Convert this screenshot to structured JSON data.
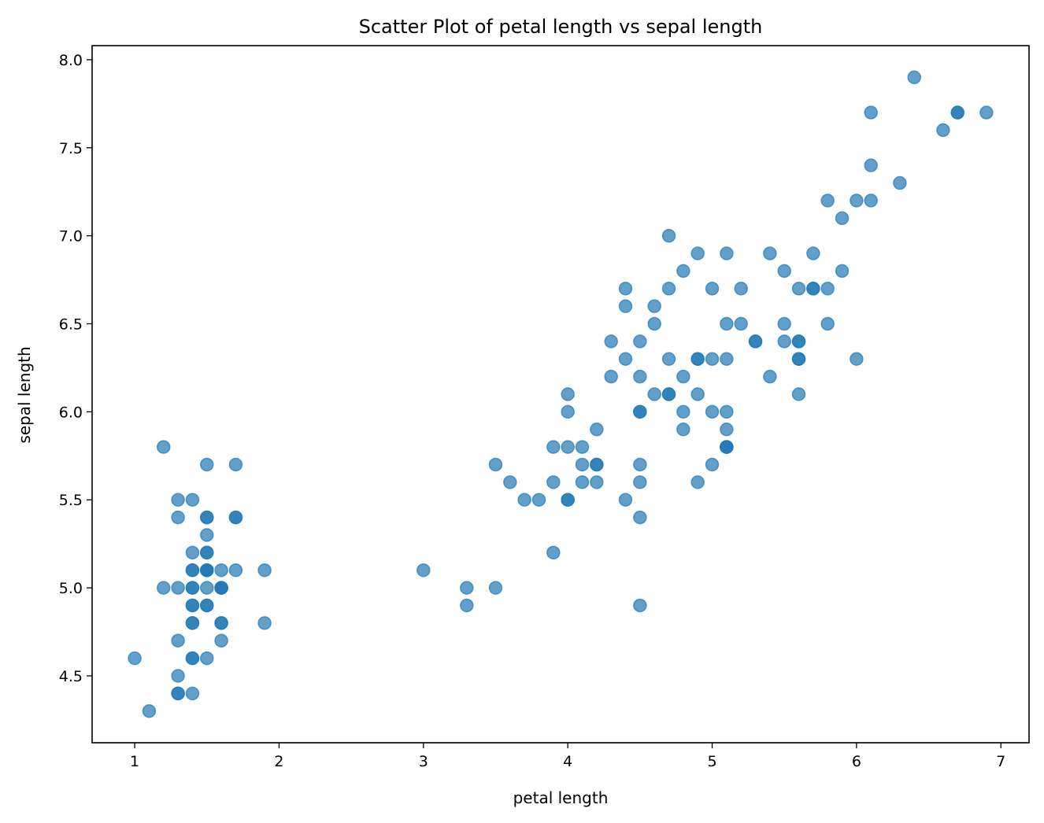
{
  "chart_data": {
    "type": "scatter",
    "title": "Scatter Plot of petal length vs sepal length",
    "xlabel": "petal length",
    "ylabel": "sepal length",
    "xlim": [
      0.705,
      7.195
    ],
    "ylim": [
      4.12,
      8.08
    ],
    "xticks": [
      1,
      2,
      3,
      4,
      5,
      6,
      7
    ],
    "xtick_labels": [
      "1",
      "2",
      "3",
      "4",
      "5",
      "6",
      "7"
    ],
    "yticks": [
      4.5,
      5.0,
      5.5,
      6.0,
      6.5,
      7.0,
      7.5,
      8.0
    ],
    "ytick_labels": [
      "4.5",
      "5.0",
      "5.5",
      "6.0",
      "6.5",
      "7.0",
      "7.5",
      "8.0"
    ],
    "grid": false,
    "marker_color": "#1f77b4",
    "marker_alpha": 0.7,
    "points": [
      [
        1.4,
        5.1
      ],
      [
        1.4,
        4.9
      ],
      [
        1.3,
        4.7
      ],
      [
        1.5,
        4.6
      ],
      [
        1.4,
        5.0
      ],
      [
        1.7,
        5.4
      ],
      [
        1.4,
        4.6
      ],
      [
        1.5,
        5.0
      ],
      [
        1.4,
        4.4
      ],
      [
        1.5,
        4.9
      ],
      [
        1.5,
        5.4
      ],
      [
        1.6,
        4.8
      ],
      [
        1.4,
        4.8
      ],
      [
        1.1,
        4.3
      ],
      [
        1.2,
        5.8
      ],
      [
        1.5,
        5.7
      ],
      [
        1.3,
        5.4
      ],
      [
        1.4,
        5.1
      ],
      [
        1.7,
        5.7
      ],
      [
        1.5,
        5.1
      ],
      [
        1.7,
        5.4
      ],
      [
        1.5,
        5.1
      ],
      [
        1.0,
        4.6
      ],
      [
        1.7,
        5.1
      ],
      [
        1.9,
        4.8
      ],
      [
        1.6,
        5.0
      ],
      [
        1.6,
        5.0
      ],
      [
        1.5,
        5.2
      ],
      [
        1.4,
        5.2
      ],
      [
        1.6,
        4.7
      ],
      [
        1.6,
        4.8
      ],
      [
        1.5,
        5.4
      ],
      [
        1.5,
        5.2
      ],
      [
        1.4,
        5.5
      ],
      [
        1.5,
        4.9
      ],
      [
        1.2,
        5.0
      ],
      [
        1.3,
        5.5
      ],
      [
        1.4,
        4.9
      ],
      [
        1.3,
        4.4
      ],
      [
        1.5,
        5.1
      ],
      [
        1.3,
        5.0
      ],
      [
        1.3,
        4.5
      ],
      [
        1.3,
        4.4
      ],
      [
        1.6,
        5.0
      ],
      [
        1.9,
        5.1
      ],
      [
        1.4,
        4.8
      ],
      [
        1.6,
        5.1
      ],
      [
        1.4,
        4.6
      ],
      [
        1.5,
        5.3
      ],
      [
        1.4,
        5.0
      ],
      [
        4.7,
        7.0
      ],
      [
        4.5,
        6.4
      ],
      [
        4.9,
        6.9
      ],
      [
        4.0,
        5.5
      ],
      [
        4.6,
        6.5
      ],
      [
        4.5,
        5.7
      ],
      [
        4.7,
        6.3
      ],
      [
        3.3,
        4.9
      ],
      [
        4.6,
        6.6
      ],
      [
        3.9,
        5.2
      ],
      [
        3.5,
        5.0
      ],
      [
        4.2,
        5.9
      ],
      [
        4.0,
        6.0
      ],
      [
        4.7,
        6.1
      ],
      [
        3.6,
        5.6
      ],
      [
        4.4,
        6.7
      ],
      [
        4.5,
        5.6
      ],
      [
        4.1,
        5.8
      ],
      [
        4.5,
        6.2
      ],
      [
        3.9,
        5.6
      ],
      [
        4.8,
        5.9
      ],
      [
        4.0,
        6.1
      ],
      [
        4.9,
        6.3
      ],
      [
        4.7,
        6.1
      ],
      [
        4.3,
        6.4
      ],
      [
        4.4,
        6.6
      ],
      [
        4.8,
        6.8
      ],
      [
        5.0,
        6.7
      ],
      [
        4.5,
        6.0
      ],
      [
        3.5,
        5.7
      ],
      [
        3.8,
        5.5
      ],
      [
        3.7,
        5.5
      ],
      [
        3.9,
        5.8
      ],
      [
        5.1,
        6.0
      ],
      [
        4.5,
        5.4
      ],
      [
        4.5,
        6.0
      ],
      [
        4.7,
        6.7
      ],
      [
        4.4,
        6.3
      ],
      [
        4.1,
        5.6
      ],
      [
        4.0,
        5.5
      ],
      [
        4.4,
        5.5
      ],
      [
        4.6,
        6.1
      ],
      [
        4.0,
        5.8
      ],
      [
        3.3,
        5.0
      ],
      [
        4.2,
        5.6
      ],
      [
        4.2,
        5.7
      ],
      [
        4.2,
        5.7
      ],
      [
        4.3,
        6.2
      ],
      [
        3.0,
        5.1
      ],
      [
        4.1,
        5.7
      ],
      [
        6.0,
        6.3
      ],
      [
        5.1,
        5.8
      ],
      [
        5.9,
        7.1
      ],
      [
        5.6,
        6.3
      ],
      [
        5.8,
        6.5
      ],
      [
        6.6,
        7.6
      ],
      [
        4.5,
        4.9
      ],
      [
        6.3,
        7.3
      ],
      [
        5.8,
        6.7
      ],
      [
        6.1,
        7.2
      ],
      [
        5.1,
        6.5
      ],
      [
        5.3,
        6.4
      ],
      [
        5.5,
        6.8
      ],
      [
        5.0,
        5.7
      ],
      [
        5.1,
        5.8
      ],
      [
        5.3,
        6.4
      ],
      [
        5.5,
        6.5
      ],
      [
        6.7,
        7.7
      ],
      [
        6.9,
        7.7
      ],
      [
        5.0,
        6.0
      ],
      [
        5.7,
        6.9
      ],
      [
        4.9,
        5.6
      ],
      [
        6.7,
        7.7
      ],
      [
        4.9,
        6.3
      ],
      [
        5.7,
        6.7
      ],
      [
        6.0,
        7.2
      ],
      [
        4.8,
        6.2
      ],
      [
        4.9,
        6.1
      ],
      [
        5.6,
        6.4
      ],
      [
        5.8,
        7.2
      ],
      [
        6.1,
        7.4
      ],
      [
        6.4,
        7.9
      ],
      [
        5.6,
        6.4
      ],
      [
        5.1,
        6.3
      ],
      [
        5.6,
        6.1
      ],
      [
        6.1,
        7.7
      ],
      [
        5.6,
        6.3
      ],
      [
        5.5,
        6.4
      ],
      [
        4.8,
        6.0
      ],
      [
        5.4,
        6.9
      ],
      [
        5.6,
        6.7
      ],
      [
        5.1,
        6.9
      ],
      [
        5.1,
        5.8
      ],
      [
        5.9,
        6.8
      ],
      [
        5.7,
        6.7
      ],
      [
        5.2,
        6.7
      ],
      [
        5.0,
        6.3
      ],
      [
        5.2,
        6.5
      ],
      [
        5.4,
        6.2
      ],
      [
        5.1,
        5.9
      ]
    ]
  }
}
